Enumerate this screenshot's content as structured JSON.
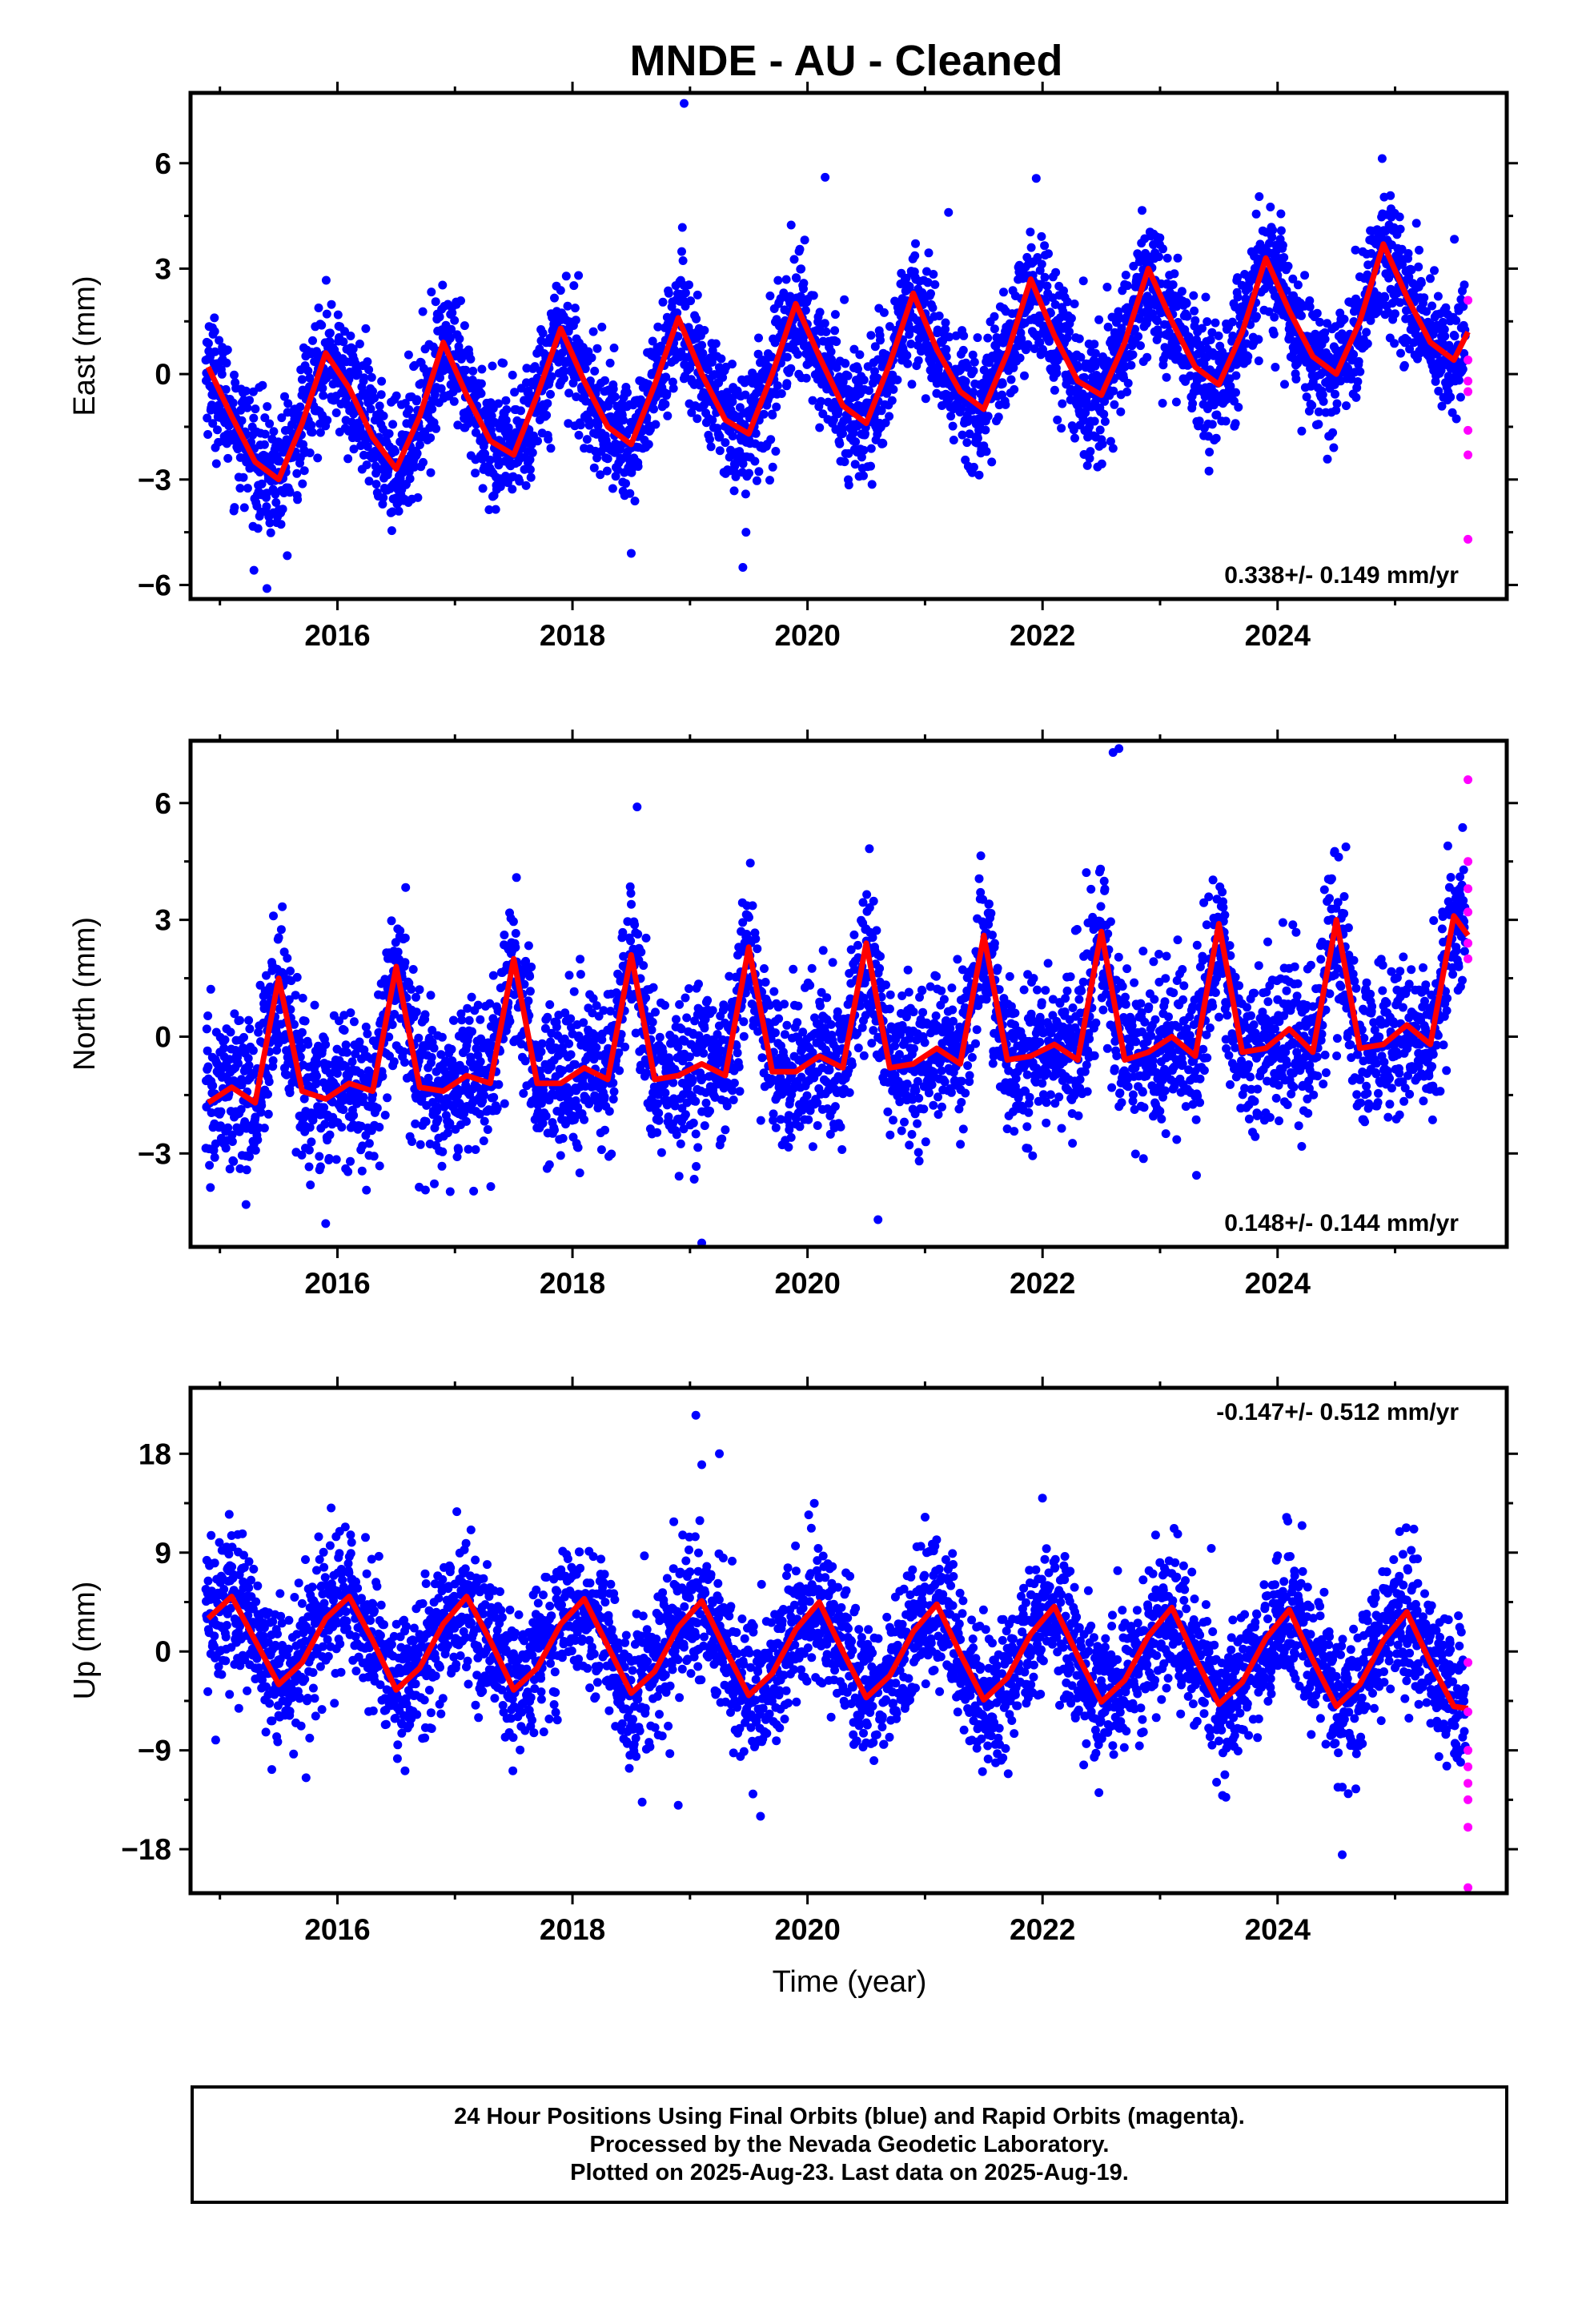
{
  "title": "MNDE  - AU - Cleaned",
  "xlabel": "Time (year)",
  "colors": {
    "final": "#0000ff",
    "rapid": "#ff00ff",
    "model": "#ff0000",
    "frame": "#000000"
  },
  "caption": {
    "line1": "24 Hour Positions Using Final Orbits (blue) and Rapid Orbits (magenta).",
    "line2": "Processed by the Nevada Geodetic Laboratory.",
    "line3": "Plotted on 2025-Aug-23. Last data on 2025-Aug-19."
  },
  "chart_data": [
    {
      "type": "scatter",
      "component": "East",
      "ylabel": "East (mm)",
      "xlim": [
        2014.75,
        2025.95
      ],
      "ylim": [
        -6.4,
        8.0
      ],
      "x_ticks": [
        2016,
        2018,
        2020,
        2022,
        2024
      ],
      "y_ticks": [
        -6,
        -3,
        0,
        3,
        6
      ],
      "rate_label": "0.338+/- 0.149 mm/yr",
      "rate_position": "bottom-right",
      "model": {
        "name": "fit",
        "x": [
          2014.9,
          2015.1,
          2015.3,
          2015.5,
          2015.7,
          2015.9,
          2016.1,
          2016.3,
          2016.5,
          2016.7,
          2016.9,
          2017.1,
          2017.3,
          2017.5,
          2017.7,
          2017.9,
          2018.1,
          2018.3,
          2018.5,
          2018.7,
          2018.9,
          2019.1,
          2019.3,
          2019.5,
          2019.7,
          2019.9,
          2020.1,
          2020.3,
          2020.5,
          2020.7,
          2020.9,
          2021.1,
          2021.3,
          2021.5,
          2021.7,
          2021.9,
          2022.1,
          2022.3,
          2022.5,
          2022.7,
          2022.9,
          2023.1,
          2023.3,
          2023.5,
          2023.7,
          2023.9,
          2024.1,
          2024.3,
          2024.5,
          2024.7,
          2024.9,
          2025.1,
          2025.3,
          2025.5,
          2025.62
        ],
        "y": [
          0.2,
          -1.2,
          -2.5,
          -3.0,
          -1.4,
          0.6,
          -0.4,
          -1.8,
          -2.7,
          -1.2,
          0.9,
          -0.6,
          -1.9,
          -2.3,
          -0.6,
          1.3,
          -0.2,
          -1.5,
          -2.0,
          -0.3,
          1.6,
          0.0,
          -1.3,
          -1.7,
          0.0,
          2.0,
          0.5,
          -0.9,
          -1.4,
          0.3,
          2.3,
          0.7,
          -0.5,
          -1.0,
          0.6,
          2.7,
          1.1,
          -0.2,
          -0.6,
          0.9,
          3.0,
          1.5,
          0.2,
          -0.3,
          1.2,
          3.3,
          1.8,
          0.5,
          0.0,
          1.5,
          3.7,
          2.2,
          0.9,
          0.4,
          1.2
        ]
      },
      "final_scatter": {
        "trend_offset": -1.0,
        "trend_rate": 0.338,
        "seasonal_amplitude": 2.0,
        "noise_sd": 0.9,
        "days": 3820
      },
      "rapid_points": {
        "x": [
          2025.62,
          2025.62,
          2025.62,
          2025.62,
          2025.62,
          2025.62,
          2025.62
        ],
        "y": [
          2.1,
          0.4,
          -0.2,
          -0.5,
          -1.6,
          -2.3,
          -4.7
        ]
      },
      "outliers": {
        "x": [
          2018.95,
          2015.4,
          2019.45,
          2018.5,
          2021.2,
          2020.15
        ],
        "y": [
          7.7,
          -6.1,
          -5.5,
          -5.1,
          4.6,
          5.6
        ]
      }
    },
    {
      "type": "scatter",
      "component": "North",
      "ylabel": "North (mm)",
      "xlim": [
        2014.75,
        2025.95
      ],
      "ylim": [
        -5.4,
        7.6
      ],
      "x_ticks": [
        2016,
        2018,
        2020,
        2022,
        2024
      ],
      "y_ticks": [
        -3,
        0,
        3,
        6
      ],
      "rate_label": "0.148+/- 0.144 mm/yr",
      "rate_position": "bottom-right",
      "model": {
        "name": "fit",
        "x": [
          2014.9,
          2015.1,
          2015.3,
          2015.5,
          2015.7,
          2015.9,
          2016.1,
          2016.3,
          2016.5,
          2016.7,
          2016.9,
          2017.1,
          2017.3,
          2017.5,
          2017.7,
          2017.9,
          2018.1,
          2018.3,
          2018.5,
          2018.7,
          2018.9,
          2019.1,
          2019.3,
          2019.5,
          2019.7,
          2019.9,
          2020.1,
          2020.3,
          2020.5,
          2020.7,
          2020.9,
          2021.1,
          2021.3,
          2021.5,
          2021.7,
          2021.9,
          2022.1,
          2022.3,
          2022.5,
          2022.7,
          2022.9,
          2023.1,
          2023.3,
          2023.5,
          2023.7,
          2023.9,
          2024.1,
          2024.3,
          2024.5,
          2024.7,
          2024.9,
          2025.1,
          2025.3,
          2025.5,
          2025.62
        ],
        "y": [
          -1.7,
          -1.3,
          -1.7,
          1.5,
          -1.4,
          -1.6,
          -1.2,
          -1.4,
          1.8,
          -1.3,
          -1.4,
          -1.0,
          -1.2,
          2.0,
          -1.2,
          -1.2,
          -0.8,
          -1.1,
          2.1,
          -1.1,
          -1.0,
          -0.7,
          -1.0,
          2.3,
          -0.9,
          -0.9,
          -0.5,
          -0.8,
          2.4,
          -0.8,
          -0.7,
          -0.3,
          -0.7,
          2.6,
          -0.6,
          -0.5,
          -0.2,
          -0.6,
          2.7,
          -0.6,
          -0.4,
          0.0,
          -0.5,
          2.9,
          -0.4,
          -0.3,
          0.2,
          -0.4,
          3.0,
          -0.3,
          -0.2,
          0.3,
          -0.2,
          3.1,
          2.6
        ]
      },
      "final_scatter": {
        "trend_offset": -0.9,
        "trend_rate": 0.148,
        "seasonal_amplitude": 1.6,
        "noise_sd": 1.0,
        "days": 3820
      },
      "rapid_points": {
        "x": [
          2025.62,
          2025.62,
          2025.62,
          2025.62,
          2025.62,
          2025.62
        ],
        "y": [
          6.6,
          4.5,
          3.8,
          3.2,
          2.4,
          2.0
        ]
      },
      "outliers": {
        "x": [
          2022.65,
          2022.6,
          2018.55,
          2019.1,
          2020.6,
          2015.9
        ],
        "y": [
          7.4,
          7.3,
          5.9,
          -5.3,
          -4.7,
          -4.8
        ]
      }
    },
    {
      "type": "scatter",
      "component": "Up",
      "ylabel": "Up (mm)",
      "xlim": [
        2014.75,
        2025.95
      ],
      "ylim": [
        -22.0,
        24.0
      ],
      "x_ticks": [
        2016,
        2018,
        2020,
        2022,
        2024
      ],
      "y_ticks": [
        -18,
        -9,
        0,
        9,
        18
      ],
      "rate_label": "-0.147+/- 0.512 mm/yr",
      "rate_position": "top-right",
      "model": {
        "name": "fit",
        "x": [
          2014.9,
          2015.1,
          2015.3,
          2015.5,
          2015.7,
          2015.9,
          2016.1,
          2016.3,
          2016.5,
          2016.7,
          2016.9,
          2017.1,
          2017.3,
          2017.5,
          2017.7,
          2017.9,
          2018.1,
          2018.3,
          2018.5,
          2018.7,
          2018.9,
          2019.1,
          2019.3,
          2019.5,
          2019.7,
          2019.9,
          2020.1,
          2020.3,
          2020.5,
          2020.7,
          2020.9,
          2021.1,
          2021.3,
          2021.5,
          2021.7,
          2021.9,
          2022.1,
          2022.3,
          2022.5,
          2022.7,
          2022.9,
          2023.1,
          2023.3,
          2023.5,
          2023.7,
          2023.9,
          2024.1,
          2024.3,
          2024.5,
          2024.7,
          2024.9,
          2025.1,
          2025.3,
          2025.5,
          2025.62
        ],
        "y": [
          3.0,
          5.0,
          1.0,
          -3.0,
          -1.0,
          3.0,
          5.0,
          1.0,
          -3.5,
          -1.5,
          2.5,
          5.0,
          1.0,
          -3.5,
          -1.5,
          2.5,
          4.8,
          0.5,
          -3.8,
          -1.8,
          2.2,
          4.6,
          0.2,
          -4.0,
          -2.0,
          2.0,
          4.5,
          0.0,
          -4.2,
          -2.2,
          1.8,
          4.3,
          -0.2,
          -4.4,
          -2.4,
          1.6,
          4.1,
          -0.4,
          -4.6,
          -2.6,
          1.4,
          4.0,
          -0.6,
          -4.8,
          -2.8,
          1.2,
          3.8,
          -0.8,
          -5.0,
          -3.0,
          1.0,
          3.6,
          -1.0,
          -5.0,
          -5.2
        ]
      },
      "final_scatter": {
        "trend_offset": 0.8,
        "trend_rate": -0.147,
        "seasonal_amplitude": 4.5,
        "noise_sd": 3.3,
        "days": 3820
      },
      "rapid_points": {
        "x": [
          2025.62,
          2025.62,
          2025.62,
          2025.62,
          2025.62,
          2025.62,
          2025.62,
          2025.62
        ],
        "y": [
          -1.0,
          -5.5,
          -9.0,
          -10.5,
          -12.0,
          -13.5,
          -16.0,
          -21.5
        ]
      },
      "outliers": {
        "x": [
          2019.05,
          2019.1,
          2019.25,
          2018.9,
          2019.6,
          2024.55
        ],
        "y": [
          21.5,
          17.0,
          18.0,
          -14.0,
          -15.0,
          -18.5
        ]
      }
    }
  ]
}
